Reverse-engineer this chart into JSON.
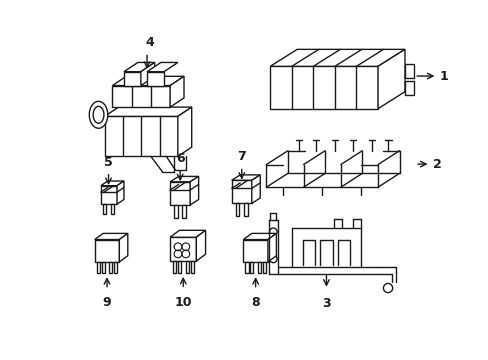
{
  "background_color": "#ffffff",
  "line_color": "#1a1a1a",
  "line_width": 1.0
}
